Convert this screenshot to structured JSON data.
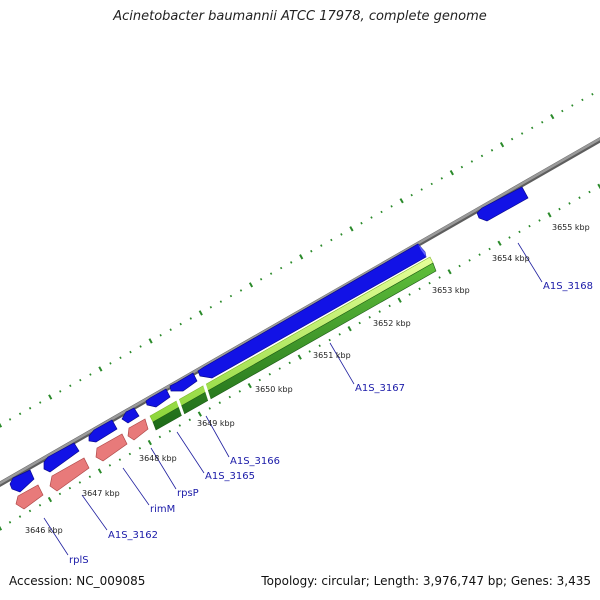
{
  "title": "Acinetobacter baumannii ATCC 17978, complete genome",
  "footer": {
    "accession": "Accession: NC_009085",
    "summary": "Topology: circular; Length: 3,976,747 bp; Genes: 3,435"
  },
  "colors": {
    "backbone": "#8c8c8c",
    "cds": "#1212e6",
    "rna": "#e87a7a",
    "gc_light": "#c6f25a",
    "gc_dark": "#2f8a24",
    "ticks": "#2a8a2a",
    "label": "#1a1aa8"
  },
  "kbp_labels": [
    "3646 kbp",
    "3647 kbp",
    "3648 kbp",
    "3649 kbp",
    "3650 kbp",
    "3651 kbp",
    "3652 kbp",
    "3653 kbp",
    "3654 kbp",
    "3655 kbp"
  ],
  "gene_labels": [
    "rplS",
    "A1S_3162",
    "rimM",
    "rpsP",
    "A1S_3165",
    "A1S_3166",
    "A1S_3167",
    "A1S_3168"
  ]
}
